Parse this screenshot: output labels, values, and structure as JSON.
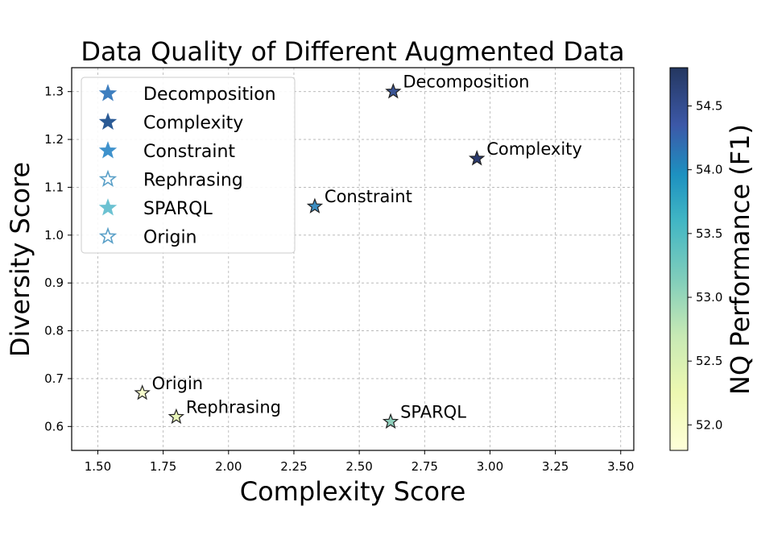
{
  "chart_data": {
    "type": "scatter",
    "title": "Data Quality of Different Augmented Data",
    "xlabel": "Complexity Score",
    "ylabel": "Diversity Score",
    "xlim": [
      1.4,
      3.55
    ],
    "ylim": [
      0.55,
      1.35
    ],
    "x_ticks": [
      "1.50",
      "1.75",
      "2.00",
      "2.25",
      "2.50",
      "2.75",
      "3.00",
      "3.25",
      "3.50"
    ],
    "y_ticks": [
      "0.6",
      "0.7",
      "0.8",
      "0.9",
      "1.0",
      "1.1",
      "1.2",
      "1.3"
    ],
    "grid": true,
    "legend_position": "upper-left",
    "marker": "star",
    "colorbar": {
      "label": "NQ Performance (F1)",
      "range": [
        51.8,
        54.8
      ],
      "ticks": [
        "52.0",
        "52.5",
        "53.0",
        "53.5",
        "54.0",
        "54.5"
      ],
      "colormap": "YlGnBu"
    },
    "points": [
      {
        "label": "Decomposition",
        "x": 2.63,
        "y": 1.3,
        "color": "#3a5494"
      },
      {
        "label": "Complexity",
        "x": 2.95,
        "y": 1.16,
        "color": "#2a3a6e"
      },
      {
        "label": "Constraint",
        "x": 2.33,
        "y": 1.06,
        "color": "#3a8cc0"
      },
      {
        "label": "Rephrasing",
        "x": 1.8,
        "y": 0.62,
        "color": "#e8f5b8"
      },
      {
        "label": "SPARQL",
        "x": 2.62,
        "y": 0.61,
        "color": "#8fcfbc"
      },
      {
        "label": "Origin",
        "x": 1.67,
        "y": 0.67,
        "color": "#f6fbcc"
      }
    ],
    "legend": [
      {
        "label": "Decomposition",
        "color": "#3f7fbf",
        "filled": true
      },
      {
        "label": "Complexity",
        "color": "#2a5a95",
        "filled": true
      },
      {
        "label": "Constraint",
        "color": "#3f92cc",
        "filled": true
      },
      {
        "label": "Rephrasing",
        "color": "#5aa0c8",
        "filled": false
      },
      {
        "label": "SPARQL",
        "color": "#6cc2d2",
        "filled": true
      },
      {
        "label": "Origin",
        "color": "#5aa0c8",
        "filled": false
      }
    ]
  }
}
